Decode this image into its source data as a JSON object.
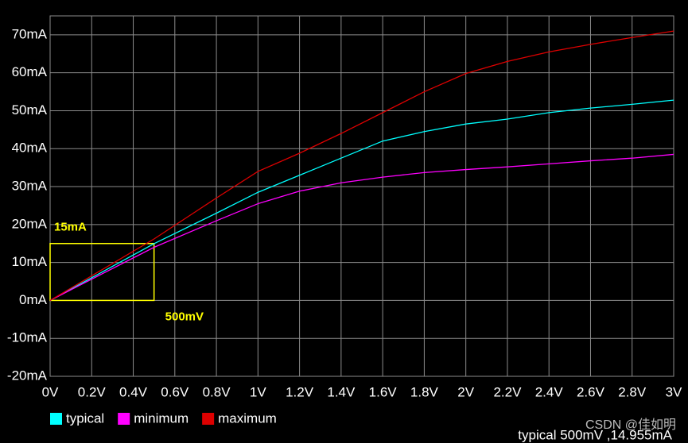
{
  "chart_data": {
    "type": "line",
    "x": [
      0,
      0.5,
      0.8,
      1.0,
      1.2,
      1.4,
      1.6,
      1.8,
      2.0,
      2.2,
      2.4,
      2.6,
      2.8,
      3.0
    ],
    "series": [
      {
        "name": "typical",
        "color": "#00ffff",
        "values": [
          0,
          14.955,
          23,
          28.5,
          33,
          37.5,
          42,
          44.5,
          46.5,
          47.8,
          49.5,
          50.7,
          51.7,
          52.8
        ]
      },
      {
        "name": "minimum",
        "color": "#ff00ff",
        "values": [
          0,
          14,
          21,
          25.5,
          28.8,
          31,
          32.5,
          33.7,
          34.5,
          35.2,
          36,
          36.8,
          37.5,
          38.5
        ]
      },
      {
        "name": "maximum",
        "color": "#dd0000",
        "values": [
          0,
          16.2,
          27,
          34,
          38.8,
          44,
          49.5,
          55,
          59.8,
          63,
          65.5,
          67.5,
          69.3,
          71
        ]
      }
    ],
    "xlim": [
      0,
      3
    ],
    "ylim": [
      -20,
      75
    ],
    "xticks": [
      {
        "value": 0,
        "label": "0V"
      },
      {
        "value": 0.2,
        "label": "0.2V"
      },
      {
        "value": 0.4,
        "label": "0.4V"
      },
      {
        "value": 0.6,
        "label": "0.6V"
      },
      {
        "value": 0.8,
        "label": "0.8V"
      },
      {
        "value": 1,
        "label": "1V"
      },
      {
        "value": 1.2,
        "label": "1.2V"
      },
      {
        "value": 1.4,
        "label": "1.4V"
      },
      {
        "value": 1.6,
        "label": "1.6V"
      },
      {
        "value": 1.8,
        "label": "1.8V"
      },
      {
        "value": 2,
        "label": "2V"
      },
      {
        "value": 2.2,
        "label": "2.2V"
      },
      {
        "value": 2.4,
        "label": "2.4V"
      },
      {
        "value": 2.6,
        "label": "2.6V"
      },
      {
        "value": 2.8,
        "label": "2.8V"
      },
      {
        "value": 3,
        "label": "3V"
      }
    ],
    "yticks": [
      {
        "value": -20,
        "label": "-20mA"
      },
      {
        "value": -10,
        "label": "-10mA"
      },
      {
        "value": 0,
        "label": "0mA"
      },
      {
        "value": 10,
        "label": "10mA"
      },
      {
        "value": 20,
        "label": "20mA"
      },
      {
        "value": 30,
        "label": "30mA"
      },
      {
        "value": 40,
        "label": "40mA"
      },
      {
        "value": 50,
        "label": "50mA"
      },
      {
        "value": 60,
        "label": "60mA"
      },
      {
        "value": 70,
        "label": "70mA"
      }
    ],
    "grid": true,
    "marker": {
      "x": 0.5,
      "y": 15,
      "x_label": "500mV",
      "y_label": "15mA",
      "color": "#ffff00"
    },
    "cursor_readout": "typical  500mV ,14.955mA",
    "watermark": "CSDN @佳如明"
  }
}
